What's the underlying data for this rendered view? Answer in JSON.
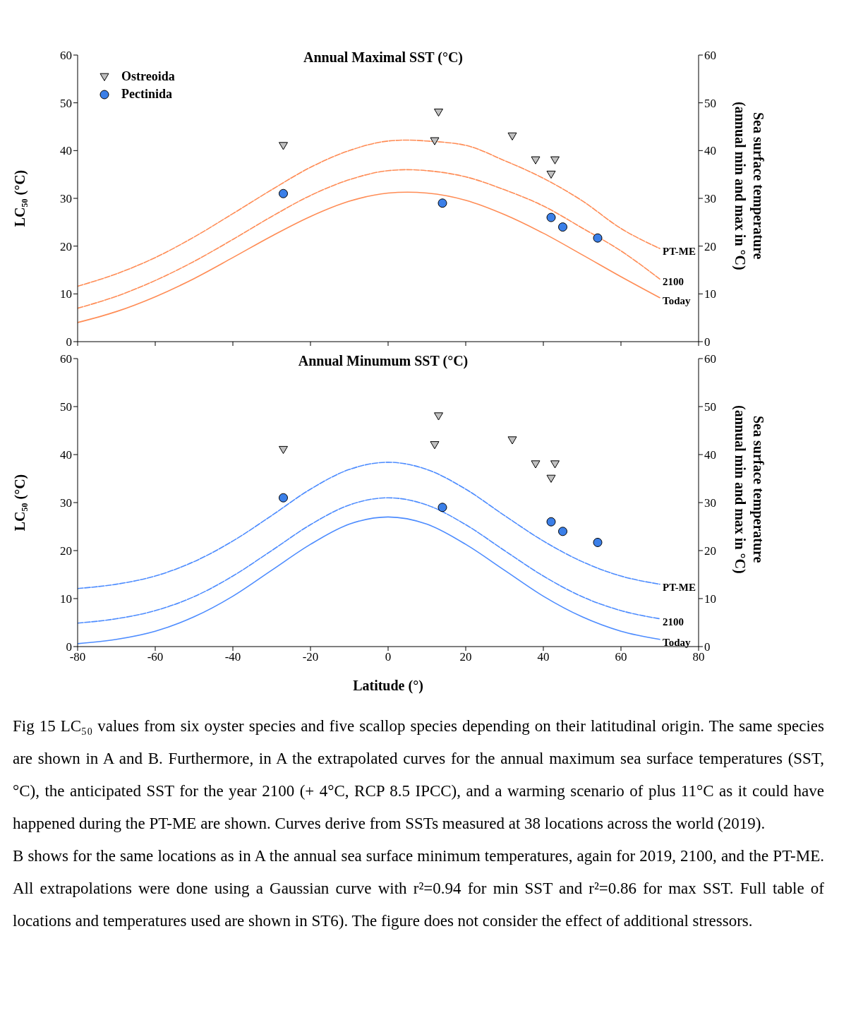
{
  "chart_data": [
    {
      "type": "line",
      "title": "Annual Maximal SST (°C)",
      "ylabel": "LC₅₀ (°C)",
      "y2label": "Sea surface temperature (annual min and max in °C)",
      "xlim": [
        -80,
        80
      ],
      "xticks": [
        -80,
        -60,
        -40,
        -20,
        0,
        20,
        40,
        60,
        80
      ],
      "ylim": [
        0,
        60
      ],
      "yticks": [
        0,
        10,
        20,
        30,
        40,
        50,
        60
      ],
      "y2lim": [
        0,
        60
      ],
      "y2ticks": [
        0,
        10,
        20,
        30,
        40,
        50,
        60
      ],
      "tick_labels": "y",
      "legend": "top left",
      "series": [
        {
          "type": "line",
          "name": "Today",
          "color": "#ff8c55",
          "line_style": "solid",
          "x": [
            -80,
            -70,
            -60,
            -50,
            -40,
            -30,
            -20,
            -10,
            0,
            5,
            10,
            20,
            30,
            40,
            50,
            60,
            70
          ],
          "values": [
            4.0,
            6.3,
            9.4,
            13.2,
            17.6,
            22.1,
            26.2,
            29.4,
            31.1,
            31.3,
            31.1,
            29.6,
            26.6,
            22.7,
            18.2,
            13.6,
            9.2
          ]
        },
        {
          "type": "line",
          "name": "2100",
          "color": "#ff8c55",
          "line_style": "dashed",
          "x": [
            -80,
            -70,
            -60,
            -50,
            -40,
            -30,
            -20,
            -10,
            0,
            5,
            10,
            20,
            30,
            40,
            50,
            60,
            70
          ],
          "values": [
            7.0,
            9.5,
            12.8,
            16.8,
            21.4,
            26.2,
            30.6,
            33.9,
            35.8,
            36.0,
            35.8,
            34.5,
            31.8,
            28.4,
            23.8,
            19.0,
            13.1
          ]
        },
        {
          "type": "line",
          "name": "PT-ME",
          "color": "#ff8c55",
          "line_style": "dashed",
          "x": [
            -80,
            -70,
            -60,
            -50,
            -40,
            -30,
            -20,
            -10,
            0,
            5,
            10,
            20,
            30,
            40,
            50,
            60,
            70
          ],
          "values": [
            11.6,
            14.2,
            17.6,
            21.9,
            26.8,
            31.8,
            36.5,
            40.0,
            42.0,
            42.2,
            42.0,
            41.1,
            37.9,
            34.2,
            29.5,
            23.7,
            19.5
          ]
        },
        {
          "type": "scatter",
          "name": "Ostreoida",
          "color": "#c0c0c0",
          "marker": "triangle",
          "x": [
            -27,
            13,
            12,
            32,
            38,
            43,
            42
          ],
          "values": [
            41,
            48,
            42,
            43,
            38,
            38,
            35
          ]
        },
        {
          "type": "scatter",
          "name": "Pectinida",
          "color": "#3b7fe8",
          "marker": "circle",
          "x": [
            -27,
            14,
            42,
            45,
            54
          ],
          "values": [
            31,
            29,
            26,
            24,
            21.7
          ]
        }
      ]
    },
    {
      "type": "line",
      "title": "Annual Minumum SST (°C)",
      "xlabel": "Latitude (°)",
      "ylabel": "LC₅₀ (°C)",
      "y2label": "Sea surface temperature (annual min and max in °C)",
      "xlim": [
        -80,
        80
      ],
      "xticks": [
        -80,
        -60,
        -40,
        -20,
        0,
        20,
        40,
        60,
        80
      ],
      "ylim": [
        0,
        60
      ],
      "yticks": [
        0,
        10,
        20,
        30,
        40,
        50,
        60
      ],
      "y2lim": [
        0,
        60
      ],
      "y2ticks": [
        0,
        10,
        20,
        30,
        40,
        50,
        60
      ],
      "series": [
        {
          "type": "line",
          "name": "Today",
          "color": "#4d8cff",
          "line_style": "solid",
          "x": [
            -80,
            -70,
            -60,
            -50,
            -40,
            -30,
            -20,
            -10,
            0,
            10,
            20,
            30,
            40,
            50,
            60,
            70
          ],
          "values": [
            0.6,
            1.5,
            3.2,
            6.2,
            10.5,
            15.9,
            21.3,
            25.5,
            27.0,
            25.5,
            21.3,
            15.9,
            10.5,
            6.2,
            3.2,
            1.5
          ]
        },
        {
          "type": "line",
          "name": "2100",
          "color": "#4d8cff",
          "line_style": "dashed",
          "x": [
            -80,
            -70,
            -60,
            -50,
            -40,
            -30,
            -20,
            -10,
            0,
            10,
            20,
            30,
            40,
            50,
            60,
            70
          ],
          "values": [
            4.9,
            5.8,
            7.5,
            10.4,
            14.7,
            20.0,
            25.4,
            29.5,
            31.0,
            29.5,
            25.4,
            20.0,
            14.7,
            10.4,
            7.5,
            5.8
          ]
        },
        {
          "type": "line",
          "name": "PT-ME",
          "color": "#4d8cff",
          "line_style": "dashed",
          "x": [
            -80,
            -70,
            -60,
            -50,
            -40,
            -30,
            -20,
            -10,
            0,
            10,
            20,
            30,
            40,
            50,
            60,
            70
          ],
          "values": [
            12.1,
            13.0,
            14.7,
            17.7,
            22.0,
            27.3,
            32.8,
            36.9,
            38.4,
            36.9,
            32.8,
            27.3,
            22.0,
            17.7,
            14.7,
            13.0
          ]
        },
        {
          "type": "scatter",
          "color": "#c0c0c0",
          "marker": "triangle",
          "x": [
            -27,
            13,
            12,
            32,
            38,
            43,
            42
          ],
          "values": [
            41,
            48,
            42,
            43,
            38,
            38,
            35
          ]
        },
        {
          "type": "scatter",
          "color": "#3b7fe8",
          "marker": "circle",
          "x": [
            -27,
            14,
            42,
            45,
            54
          ],
          "values": [
            31,
            29,
            26,
            24,
            21.7
          ]
        }
      ],
      "annotations": [
        "Fig 15 LC₅₀ values from six oyster species and five scallop species depending on their latitudinal origin. The same species are shown in A and B. Furthermore, in A the extrapolated curves for the annual maximum sea surface temperatures (SST, °C), the anticipated SST for the year 2100 (+ 4°C, RCP 8.5 IPCC), and a warming scenario of plus 11°C as it could have happened during the PT-ME are shown. Curves derive from SSTs measured at 38 locations across the world (2019).",
        "B shows for the same locations as in A the annual sea surface minimum temperatures, again for 2019, 2100, and the PT-ME. All extrapolations were done using a Gaussian curve with r²=0.94 for min SST and r²=0.86 for max SST. Full table of locations and temperatures used are shown in ST6). The figure does not consider the effect of additional stressors."
      ]
    }
  ]
}
